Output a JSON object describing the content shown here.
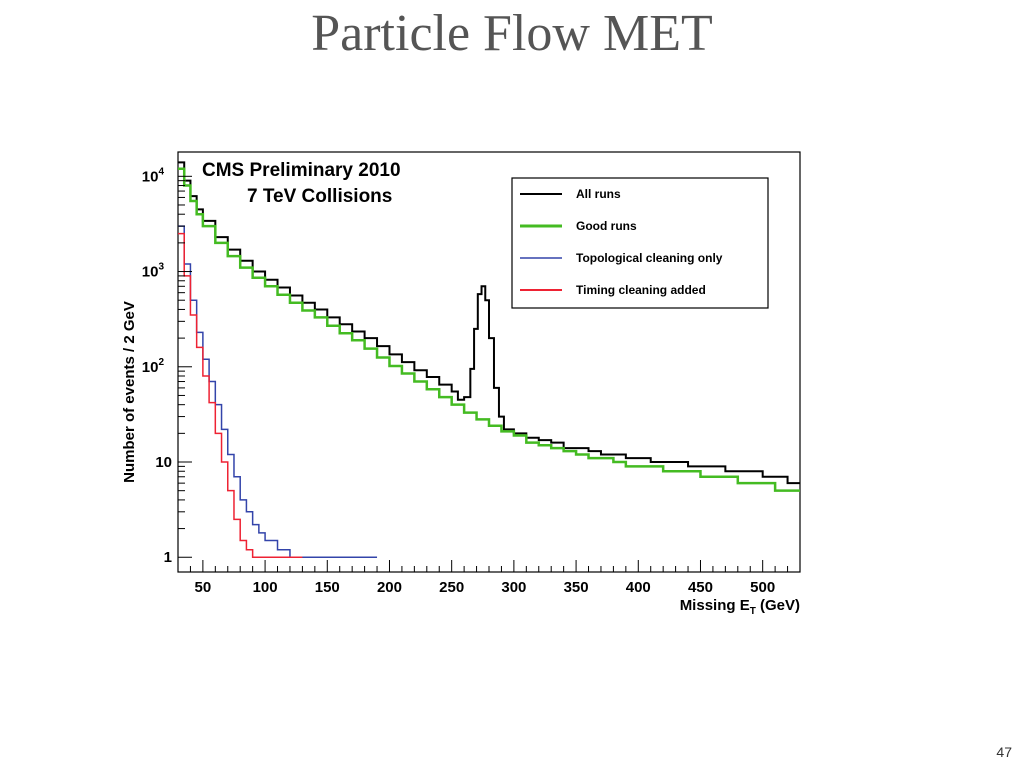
{
  "slide": {
    "title": "Particle Flow MET",
    "page_number": "47"
  },
  "chart_data": {
    "type": "line",
    "annotation": [
      "CMS Preliminary 2010",
      "7 TeV Collisions"
    ],
    "xlabel": "Missing E",
    "xlabel_sub": "T",
    "xlabel_unit": "(GeV)",
    "ylabel": "Number of events / 2 GeV",
    "xlim": [
      30,
      530
    ],
    "ylim": [
      0.7,
      18000
    ],
    "yscale": "log",
    "x_ticks": [
      50,
      100,
      150,
      200,
      250,
      300,
      350,
      400,
      450,
      500
    ],
    "y_ticks": [
      {
        "value": 1,
        "base": "1",
        "exp": ""
      },
      {
        "value": 10,
        "base": "10",
        "exp": ""
      },
      {
        "value": 100,
        "base": "10",
        "exp": "2"
      },
      {
        "value": 1000,
        "base": "10",
        "exp": "3"
      },
      {
        "value": 10000,
        "base": "10",
        "exp": "4"
      }
    ],
    "legend_position": "top-right",
    "series": [
      {
        "name": "All runs",
        "color": "#000000",
        "width": 2,
        "points": [
          [
            30,
            14000
          ],
          [
            35,
            9000
          ],
          [
            40,
            6200
          ],
          [
            45,
            4500
          ],
          [
            50,
            3400
          ],
          [
            60,
            2300
          ],
          [
            70,
            1700
          ],
          [
            80,
            1300
          ],
          [
            90,
            1000
          ],
          [
            100,
            820
          ],
          [
            110,
            680
          ],
          [
            120,
            560
          ],
          [
            130,
            470
          ],
          [
            140,
            400
          ],
          [
            150,
            330
          ],
          [
            160,
            280
          ],
          [
            170,
            235
          ],
          [
            180,
            200
          ],
          [
            190,
            165
          ],
          [
            200,
            135
          ],
          [
            210,
            112
          ],
          [
            220,
            92
          ],
          [
            230,
            78
          ],
          [
            240,
            65
          ],
          [
            250,
            55
          ],
          [
            255,
            45
          ],
          [
            260,
            48
          ],
          [
            265,
            95
          ],
          [
            268,
            250
          ],
          [
            271,
            580
          ],
          [
            274,
            700
          ],
          [
            277,
            500
          ],
          [
            280,
            200
          ],
          [
            284,
            60
          ],
          [
            288,
            30
          ],
          [
            292,
            22
          ],
          [
            300,
            20
          ],
          [
            310,
            18
          ],
          [
            320,
            17
          ],
          [
            330,
            16
          ],
          [
            340,
            14
          ],
          [
            350,
            14
          ],
          [
            360,
            13
          ],
          [
            370,
            12
          ],
          [
            380,
            12
          ],
          [
            390,
            11
          ],
          [
            400,
            11
          ],
          [
            410,
            10
          ],
          [
            420,
            10
          ],
          [
            430,
            10
          ],
          [
            440,
            9
          ],
          [
            450,
            9
          ],
          [
            460,
            9
          ],
          [
            470,
            8
          ],
          [
            480,
            8
          ],
          [
            490,
            8
          ],
          [
            500,
            7
          ],
          [
            510,
            7
          ],
          [
            520,
            6
          ],
          [
            530,
            6
          ]
        ]
      },
      {
        "name": "Good runs",
        "color": "#44bb22",
        "width": 2.5,
        "points": [
          [
            30,
            12000
          ],
          [
            35,
            8000
          ],
          [
            40,
            5500
          ],
          [
            45,
            4000
          ],
          [
            50,
            3000
          ],
          [
            60,
            2000
          ],
          [
            70,
            1450
          ],
          [
            80,
            1100
          ],
          [
            90,
            860
          ],
          [
            100,
            700
          ],
          [
            110,
            570
          ],
          [
            120,
            470
          ],
          [
            130,
            390
          ],
          [
            140,
            330
          ],
          [
            150,
            270
          ],
          [
            160,
            225
          ],
          [
            170,
            190
          ],
          [
            180,
            155
          ],
          [
            190,
            125
          ],
          [
            200,
            102
          ],
          [
            210,
            85
          ],
          [
            220,
            70
          ],
          [
            230,
            58
          ],
          [
            240,
            48
          ],
          [
            250,
            40
          ],
          [
            260,
            33
          ],
          [
            270,
            28
          ],
          [
            280,
            24
          ],
          [
            290,
            21
          ],
          [
            300,
            19
          ],
          [
            310,
            16
          ],
          [
            320,
            15
          ],
          [
            330,
            14
          ],
          [
            340,
            13
          ],
          [
            350,
            12
          ],
          [
            360,
            11
          ],
          [
            370,
            11
          ],
          [
            380,
            10
          ],
          [
            390,
            9
          ],
          [
            400,
            9
          ],
          [
            410,
            9
          ],
          [
            420,
            8
          ],
          [
            430,
            8
          ],
          [
            440,
            8
          ],
          [
            450,
            7
          ],
          [
            460,
            7
          ],
          [
            470,
            7
          ],
          [
            480,
            6
          ],
          [
            490,
            6
          ],
          [
            500,
            6
          ],
          [
            510,
            5
          ],
          [
            520,
            5
          ],
          [
            530,
            5
          ]
        ]
      },
      {
        "name": "Topological cleaning only",
        "color": "#3344aa",
        "width": 1.5,
        "points": [
          [
            30,
            3000
          ],
          [
            35,
            1200
          ],
          [
            40,
            500
          ],
          [
            45,
            230
          ],
          [
            50,
            120
          ],
          [
            55,
            70
          ],
          [
            60,
            40
          ],
          [
            65,
            22
          ],
          [
            70,
            12
          ],
          [
            75,
            7
          ],
          [
            80,
            4
          ],
          [
            85,
            3
          ],
          [
            90,
            2.2
          ],
          [
            95,
            1.8
          ],
          [
            100,
            1.5
          ],
          [
            110,
            1.2
          ],
          [
            120,
            1
          ],
          [
            130,
            1
          ],
          [
            140,
            1
          ],
          [
            150,
            1
          ],
          [
            160,
            1
          ],
          [
            170,
            1
          ],
          [
            180,
            1
          ]
        ]
      },
      {
        "name": "Timing cleaning added",
        "color": "#ee2233",
        "width": 1.5,
        "points": [
          [
            30,
            2500
          ],
          [
            35,
            900
          ],
          [
            40,
            350
          ],
          [
            45,
            160
          ],
          [
            50,
            80
          ],
          [
            55,
            42
          ],
          [
            60,
            20
          ],
          [
            65,
            10
          ],
          [
            70,
            5
          ],
          [
            75,
            2.5
          ],
          [
            80,
            1.5
          ],
          [
            85,
            1.2
          ],
          [
            90,
            1
          ],
          [
            95,
            1
          ],
          [
            100,
            1
          ],
          [
            110,
            1
          ],
          [
            120,
            1
          ]
        ]
      }
    ]
  }
}
